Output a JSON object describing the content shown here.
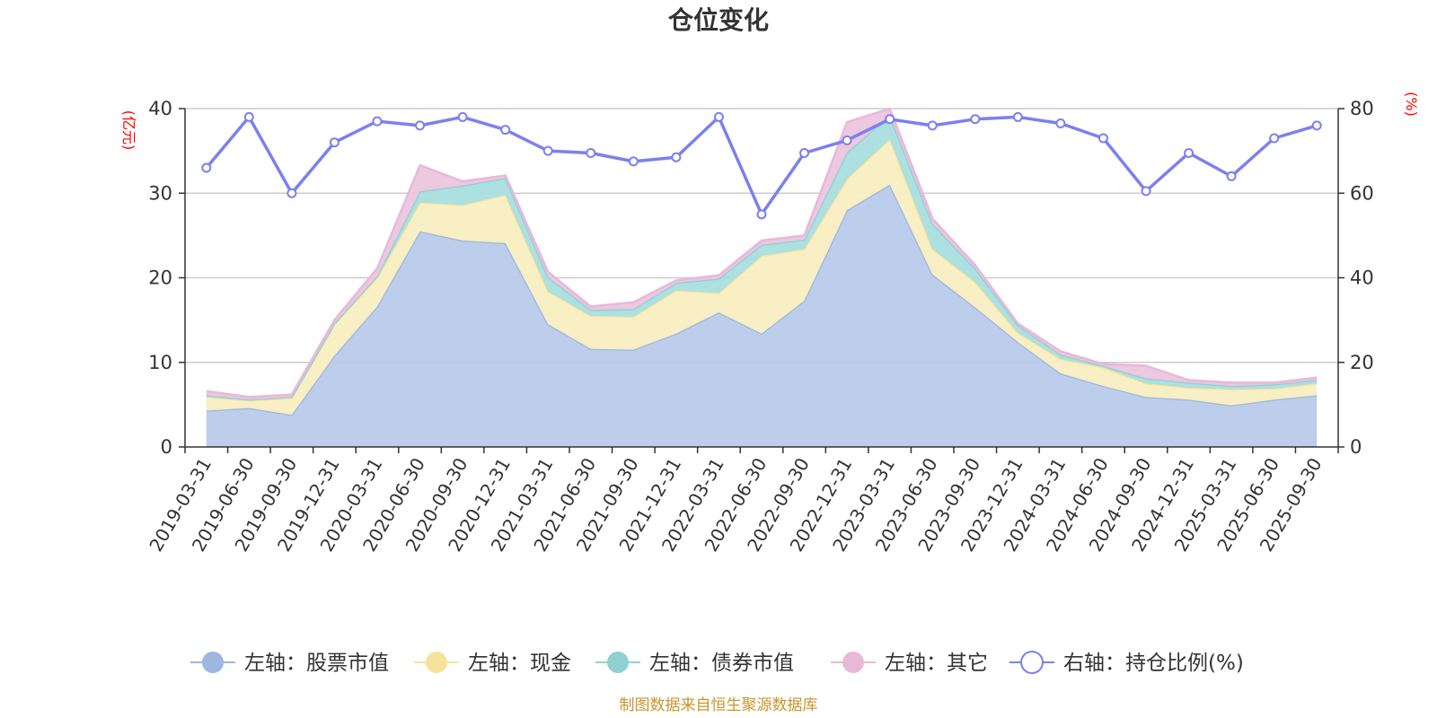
{
  "chart_data": {
    "type": "area",
    "title": "仓位变化",
    "left_axis_unit": "(亿元)",
    "right_axis_unit": "(%)",
    "source": "制图数据来自恒生聚源数据库",
    "left_ylim": [
      0,
      40
    ],
    "left_ticks": [
      0,
      10,
      20,
      30,
      40
    ],
    "right_ylim": [
      0,
      80
    ],
    "right_ticks": [
      0,
      20,
      40,
      60,
      80
    ],
    "grid": true,
    "legend_position": "bottom",
    "categories": [
      "2019-03-31",
      "2019-06-30",
      "2019-09-30",
      "2019-12-31",
      "2020-03-31",
      "2020-06-30",
      "2020-09-30",
      "2020-12-31",
      "2021-03-31",
      "2021-06-30",
      "2021-09-30",
      "2021-12-31",
      "2022-03-31",
      "2022-06-30",
      "2022-09-30",
      "2022-12-31",
      "2023-03-31",
      "2023-06-30",
      "2023-09-30",
      "2023-12-31",
      "2024-03-31",
      "2024-06-30",
      "2024-09-30",
      "2024-12-31",
      "2025-03-31",
      "2025-06-30",
      "2025-09-30"
    ],
    "series": [
      {
        "name": "左轴：股票市值",
        "axis": "left",
        "stack": true,
        "color": "#9db7e0",
        "fill": "#b8cbea",
        "values": [
          4.3,
          4.6,
          3.8,
          10.8,
          16.6,
          25.5,
          24.4,
          24.1,
          14.5,
          11.6,
          11.5,
          13.4,
          15.9,
          13.4,
          17.3,
          28.0,
          31.0,
          20.4,
          16.5,
          12.4,
          8.7,
          7.2,
          5.9,
          5.6,
          4.9,
          5.6,
          6.1
        ]
      },
      {
        "name": "左轴：现金",
        "axis": "left",
        "stack": true,
        "color": "#f6e39b",
        "fill": "#f9eec2",
        "values": [
          1.6,
          0.9,
          2.0,
          3.7,
          3.4,
          3.4,
          4.2,
          5.7,
          3.9,
          3.9,
          3.9,
          5.1,
          2.3,
          9.2,
          6.1,
          3.7,
          5.4,
          3.0,
          3.0,
          1.1,
          1.7,
          2.2,
          1.6,
          1.4,
          1.9,
          1.3,
          1.4
        ]
      },
      {
        "name": "左轴：债券市值",
        "axis": "left",
        "stack": true,
        "color": "#8fd1d1",
        "fill": "#a9dede",
        "values": [
          0.2,
          0.1,
          0.1,
          0.1,
          0.2,
          1.3,
          2.3,
          2.0,
          1.7,
          0.7,
          0.9,
          0.9,
          1.7,
          1.3,
          1.1,
          3.1,
          2.8,
          3.0,
          1.6,
          0.9,
          0.5,
          0.2,
          0.6,
          0.6,
          0.4,
          0.5,
          0.4
        ]
      },
      {
        "name": "左轴：其它",
        "axis": "left",
        "stack": true,
        "color": "#e8b8d9",
        "fill": "#ecc5df",
        "values": [
          0.5,
          0.3,
          0.3,
          0.4,
          0.9,
          3.1,
          0.5,
          0.3,
          0.6,
          0.4,
          0.8,
          0.3,
          0.4,
          0.5,
          0.5,
          3.6,
          0.8,
          0.6,
          0.4,
          0.2,
          0.4,
          0.2,
          1.5,
          0.3,
          0.4,
          0.2,
          0.3
        ]
      },
      {
        "name": "右轴：持仓比例(%)",
        "axis": "right",
        "type": "line",
        "color": "#7b80f0",
        "values": [
          66,
          78,
          60,
          72,
          77,
          76,
          78,
          75,
          70,
          69.5,
          67.5,
          68.5,
          78,
          55,
          69.5,
          72.5,
          77.5,
          76,
          77.5,
          78,
          76.5,
          73,
          60.5,
          69.5,
          64,
          73,
          76
        ]
      }
    ]
  }
}
